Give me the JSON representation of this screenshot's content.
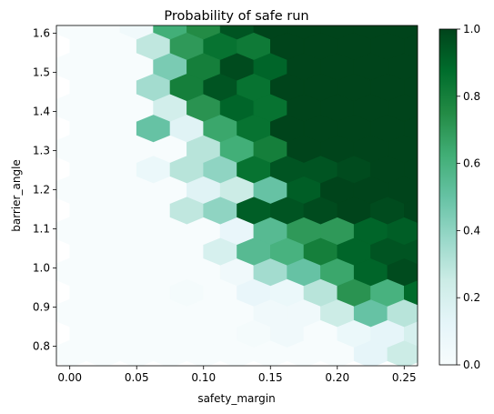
{
  "chart_data": {
    "type": "heatmap",
    "subtype": "hexbin",
    "title": "Probability of safe run",
    "xlabel": "safety_margin",
    "ylabel": "barrier_angle",
    "xlim": [
      -0.01,
      0.26
    ],
    "ylim": [
      0.75,
      1.62
    ],
    "x_ticks": [
      "0.00",
      "0.05",
      "0.10",
      "0.15",
      "0.20",
      "0.25"
    ],
    "y_ticks": [
      "0.8",
      "0.9",
      "1.0",
      "1.1",
      "1.2",
      "1.3",
      "1.4",
      "1.5",
      "1.6"
    ],
    "colorbar": {
      "min": 0.0,
      "max": 1.0,
      "ticks": [
        "0.0",
        "0.2",
        "0.4",
        "0.6",
        "0.8",
        "1.0"
      ],
      "colormap": "BuGn",
      "low_color": "#f7fcfd",
      "high_color": "#00441b"
    },
    "grid": false,
    "hex_grid": {
      "x_start": 0.0,
      "x_step": 0.025,
      "y_start": 0.78,
      "y_step": 0.0525
    },
    "rows": [
      {
        "offset": false,
        "values": [
          0.0,
          0.0,
          0.0,
          0.0,
          0.0,
          0.0,
          0.0,
          0.0,
          0.0,
          0.12,
          0.25,
          0.0
        ]
      },
      {
        "offset": true,
        "values": [
          0.0,
          0.0,
          0.0,
          0.0,
          0.0,
          0.02,
          0.05,
          0.0,
          0.08,
          0.12,
          0.2
        ]
      },
      {
        "offset": false,
        "values": [
          0.0,
          0.0,
          0.0,
          0.0,
          0.0,
          0.0,
          0.05,
          0.05,
          0.25,
          0.5,
          0.3,
          0.25,
          0.45
        ]
      },
      {
        "offset": true,
        "values": [
          0.0,
          0.0,
          0.0,
          0.02,
          0.0,
          0.1,
          0.08,
          0.3,
          0.72,
          0.6,
          0.88,
          0.65
        ]
      },
      {
        "offset": false,
        "values": [
          0.0,
          0.0,
          0.0,
          0.0,
          0.0,
          0.05,
          0.35,
          0.5,
          0.65,
          0.9,
          0.98,
          0.92,
          0.85,
          0.9
        ]
      },
      {
        "offset": true,
        "values": [
          0.0,
          0.0,
          0.0,
          0.0,
          0.2,
          0.55,
          0.6,
          0.8,
          0.9,
          0.95,
          0.95,
          0.85,
          0.95
        ]
      },
      {
        "offset": false,
        "values": [
          0.0,
          0.0,
          0.0,
          0.0,
          0.0,
          0.1,
          0.55,
          0.7,
          0.7,
          0.9,
          0.92,
          0.92,
          1.0,
          0.85
        ]
      },
      {
        "offset": true,
        "values": [
          0.0,
          0.0,
          0.0,
          0.28,
          0.4,
          0.92,
          0.95,
          0.98,
          1.0,
          0.98,
          1.0,
          1.0,
          0.92
        ]
      },
      {
        "offset": false,
        "values": [
          0.0,
          0.0,
          0.0,
          0.0,
          0.15,
          0.25,
          0.5,
          0.92,
          1.0,
          1.0,
          1.0,
          1.0,
          1.0,
          1.0
        ]
      },
      {
        "offset": true,
        "values": [
          0.0,
          0.0,
          0.08,
          0.3,
          0.4,
          0.85,
          0.95,
          0.95,
          0.98,
          1.0,
          1.0,
          1.0,
          1.0
        ]
      },
      {
        "offset": false,
        "values": [
          0.0,
          0.0,
          0.0,
          0.0,
          0.3,
          0.62,
          0.8,
          1.0,
          1.0,
          1.0,
          1.0,
          1.0,
          1.0,
          1.0
        ]
      },
      {
        "offset": true,
        "values": [
          0.0,
          0.0,
          0.5,
          0.15,
          0.65,
          0.85,
          1.0,
          1.0,
          1.0,
          1.0,
          1.0,
          1.0,
          1.0
        ]
      },
      {
        "offset": false,
        "values": [
          0.0,
          0.0,
          0.0,
          0.22,
          0.72,
          0.9,
          0.85,
          1.0,
          1.0,
          1.0,
          1.0,
          1.0,
          1.0,
          1.0
        ]
      },
      {
        "offset": true,
        "values": [
          0.0,
          0.0,
          0.35,
          0.8,
          0.95,
          0.85,
          1.0,
          1.0,
          1.0,
          1.0,
          1.0,
          1.0,
          1.0
        ]
      },
      {
        "offset": false,
        "values": [
          0.0,
          0.0,
          0.0,
          0.45,
          0.8,
          0.98,
          0.9,
          1.0,
          1.0,
          1.0,
          1.0,
          1.0,
          1.0,
          1.0
        ]
      },
      {
        "offset": true,
        "values": [
          0.0,
          0.0,
          0.28,
          0.7,
          0.85,
          0.82,
          1.0,
          1.0,
          1.0,
          1.0,
          1.0,
          1.0,
          1.0
        ]
      },
      {
        "offset": false,
        "values": [
          0.0,
          0.0,
          0.05,
          0.62,
          0.75,
          0.95,
          1.0,
          1.0,
          1.0,
          1.0,
          1.0,
          1.0,
          1.0,
          1.0
        ]
      }
    ]
  }
}
